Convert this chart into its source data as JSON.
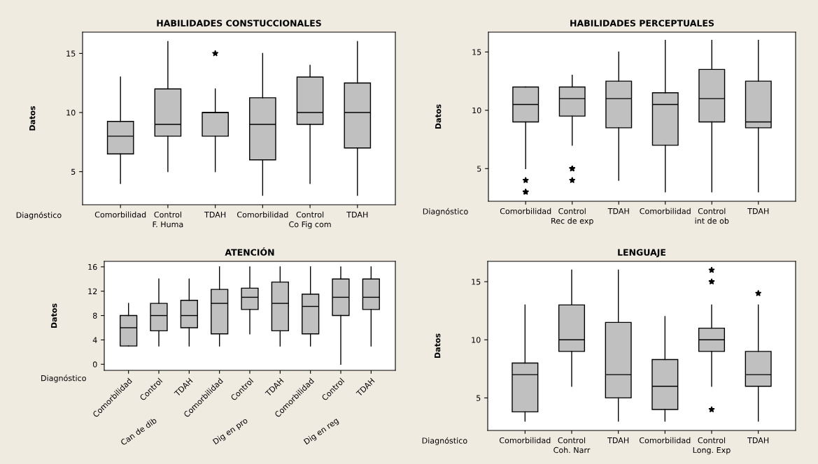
{
  "chart_data": [
    {
      "type": "box",
      "title": "HABILIDADES CONSTUCCIONALES",
      "xlabel": "Diagnóstico",
      "ylabel": "Datos",
      "categories": [
        "Comorbilidad",
        "Control",
        "TDAH",
        "Comorbilidad",
        "Control",
        "TDAH"
      ],
      "annotations": [
        "F. Huma",
        "Co Fig com"
      ],
      "ylim": [
        2.2,
        16.8
      ],
      "yticks": [
        5,
        10,
        15
      ],
      "grid": false,
      "legend": false,
      "series": [
        {
          "color": "#c0c0c0",
          "boxes": [
            {
              "low": 4,
              "q1": 6.5,
              "median": 8,
              "q3": 9.25,
              "high": 13
            },
            {
              "low": 5,
              "q1": 8,
              "median": 9,
              "q3": 12,
              "high": 16
            },
            {
              "low": 5,
              "q1": 8,
              "median": 10,
              "q3": 10,
              "high": 12,
              "outliers": [
                15
              ]
            },
            {
              "low": 3,
              "q1": 6,
              "median": 9,
              "q3": 11.25,
              "high": 15
            },
            {
              "low": 4,
              "q1": 9,
              "median": 10,
              "q3": 13,
              "high": 14
            },
            {
              "low": 3,
              "q1": 7,
              "median": 10,
              "q3": 12.5,
              "high": 16
            }
          ]
        }
      ]
    },
    {
      "type": "box",
      "title": "HABILIDADES PERCEPTUALES",
      "xlabel": "Diagnóstico",
      "ylabel": "Datos",
      "categories": [
        "Comorbilidad",
        "Control",
        "TDAH",
        "Comorbilidad",
        "Control",
        "TDAH"
      ],
      "annotations": [
        "Rec de exp",
        "int de ob"
      ],
      "ylim": [
        2.2,
        16.7
      ],
      "yticks": [
        5,
        10,
        15
      ],
      "grid": false,
      "legend": false,
      "series": [
        {
          "color": "#c0c0c0",
          "boxes": [
            {
              "low": 5,
              "q1": 9,
              "median": 10.5,
              "q3": 12,
              "high": 12,
              "outliers": [
                4,
                3,
                3
              ]
            },
            {
              "low": 7,
              "q1": 9.5,
              "median": 11,
              "q3": 12,
              "high": 13,
              "outliers": [
                5,
                5,
                4
              ]
            },
            {
              "low": 4,
              "q1": 8.5,
              "median": 11,
              "q3": 12.5,
              "high": 15
            },
            {
              "low": 3,
              "q1": 7,
              "median": 10.5,
              "q3": 11.5,
              "high": 16
            },
            {
              "low": 3,
              "q1": 9,
              "median": 11,
              "q3": 13.5,
              "high": 16
            },
            {
              "low": 3,
              "q1": 8.5,
              "median": 9,
              "q3": 12.5,
              "high": 16
            }
          ]
        }
      ]
    },
    {
      "type": "box",
      "title": "ATENCIÓN",
      "xlabel": "Diagnóstico",
      "ylabel": "Datos",
      "categories": [
        "Comorbilidad",
        "Control",
        "TDAH",
        "Comorbilidad",
        "Control",
        "TDAH",
        "Comorbilidad",
        "Control",
        "TDAH"
      ],
      "annotations": [
        "Can de dib",
        "Dig en pro",
        "Dig en reg"
      ],
      "ylim": [
        -1,
        16.9
      ],
      "yticks": [
        0,
        4,
        8,
        12,
        16
      ],
      "grid": false,
      "legend": false,
      "series": [
        {
          "color": "#c0c0c0",
          "boxes": [
            {
              "low": 3,
              "q1": 3,
              "median": 6,
              "q3": 8,
              "high": 10
            },
            {
              "low": 3,
              "q1": 5.5,
              "median": 8,
              "q3": 10,
              "high": 14
            },
            {
              "low": 3,
              "q1": 6,
              "median": 8,
              "q3": 10.5,
              "high": 14
            },
            {
              "low": 3,
              "q1": 5,
              "median": 10,
              "q3": 12.3,
              "high": 16
            },
            {
              "low": 5,
              "q1": 9,
              "median": 11,
              "q3": 12.5,
              "high": 16
            },
            {
              "low": 3,
              "q1": 5.5,
              "median": 10,
              "q3": 13.5,
              "high": 16
            },
            {
              "low": 3,
              "q1": 5,
              "median": 9.5,
              "q3": 11.5,
              "high": 16
            },
            {
              "low": 0,
              "q1": 8,
              "median": 11,
              "q3": 14,
              "high": 16
            },
            {
              "low": 3,
              "q1": 9,
              "median": 11,
              "q3": 14,
              "high": 16
            }
          ]
        }
      ]
    },
    {
      "type": "box",
      "title": "LENGUAJE",
      "xlabel": "Diagnóstico",
      "ylabel": "Datos",
      "categories": [
        "Comorbilidad",
        "Control",
        "TDAH",
        "Comorbilidad",
        "Control",
        "TDAH"
      ],
      "annotations": [
        "Coh. Narr",
        "Long. Exp"
      ],
      "ylim": [
        2.2,
        16.75
      ],
      "yticks": [
        5,
        10,
        15
      ],
      "grid": false,
      "legend": false,
      "series": [
        {
          "color": "#c0c0c0",
          "boxes": [
            {
              "low": 3,
              "q1": 3.8,
              "median": 7,
              "q3": 8,
              "high": 13
            },
            {
              "low": 6,
              "q1": 9,
              "median": 10,
              "q3": 13,
              "high": 16
            },
            {
              "low": 3,
              "q1": 5,
              "median": 7,
              "q3": 11.5,
              "high": 16
            },
            {
              "low": 3,
              "q1": 4,
              "median": 6,
              "q3": 8.3,
              "high": 12
            },
            {
              "low": 6,
              "q1": 9,
              "median": 10,
              "q3": 11,
              "high": 13,
              "outliers": [
                16,
                15,
                4
              ]
            },
            {
              "low": 3,
              "q1": 6,
              "median": 7,
              "q3": 9,
              "high": 13,
              "outliers": [
                14
              ]
            }
          ]
        }
      ]
    }
  ]
}
